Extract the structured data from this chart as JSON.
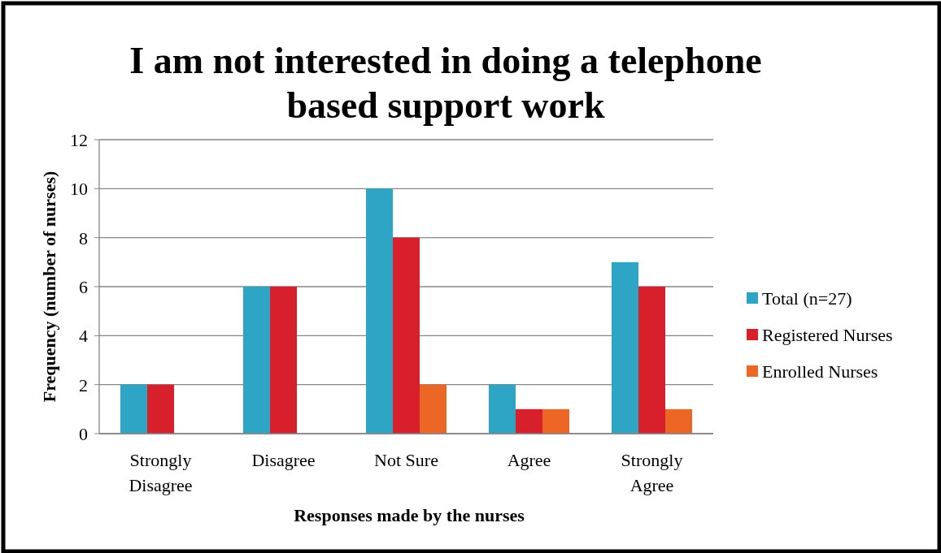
{
  "chart_data": {
    "type": "bar",
    "title": "I am not interested in doing a telephone based support work",
    "xlabel": "Responses made by the nurses",
    "ylabel": "Frequency (number of nurses)",
    "categories": [
      "Strongly Disagree",
      "Disagree",
      "Not Sure",
      "Agree",
      "Strongly Agree"
    ],
    "series": [
      {
        "name": "Total (n=27)",
        "color": "#2ea5c4",
        "values": [
          2,
          6,
          10,
          2,
          7
        ]
      },
      {
        "name": "Registered Nurses",
        "color": "#d7202b",
        "values": [
          2,
          6,
          8,
          1,
          6
        ]
      },
      {
        "name": "Enrolled Nurses",
        "color": "#ec6625",
        "values": [
          0,
          0,
          2,
          1,
          1
        ]
      }
    ],
    "ylim": [
      0,
      12
    ],
    "yticks": [
      0,
      2,
      4,
      6,
      8,
      10,
      12
    ],
    "grid": "y",
    "legend": "right"
  }
}
